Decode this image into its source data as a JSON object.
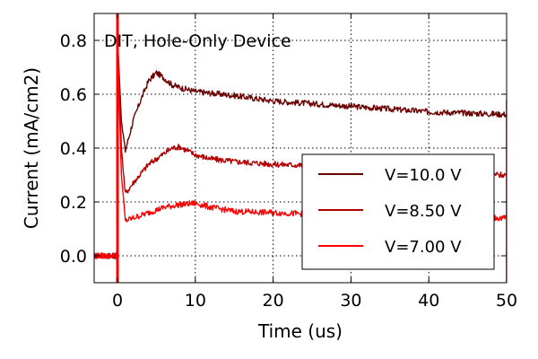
{
  "chart_data": {
    "type": "line",
    "title": "",
    "annotation": "DIT, Hole-Only Device",
    "xlabel": "Time (us)",
    "ylabel": "Current (mA/cm2)",
    "xlim": [
      -3,
      50
    ],
    "ylim": [
      -0.1,
      0.9
    ],
    "x_ticks": [
      0,
      10,
      20,
      30,
      40,
      50
    ],
    "y_ticks": [
      0.0,
      0.2,
      0.4,
      0.6,
      0.8
    ],
    "x_tick_labels": [
      "0",
      "10",
      "20",
      "30",
      "40",
      "50"
    ],
    "y_tick_labels": [
      "0.0",
      "0.2",
      "0.4",
      "0.6",
      "0.8"
    ],
    "grid": true,
    "grid_style": "dotted",
    "legend_position": "center-right",
    "series": [
      {
        "name": "V=10.0 V",
        "color": "#6b0000",
        "points": [
          [
            -3,
            0.0
          ],
          [
            0,
            0.0
          ],
          [
            0.1,
            0.75
          ],
          [
            0.5,
            0.5
          ],
          [
            1,
            0.39
          ],
          [
            2,
            0.5
          ],
          [
            3,
            0.58
          ],
          [
            4,
            0.65
          ],
          [
            5,
            0.68
          ],
          [
            6,
            0.66
          ],
          [
            7,
            0.635
          ],
          [
            8,
            0.625
          ],
          [
            10,
            0.61
          ],
          [
            15,
            0.595
          ],
          [
            20,
            0.575
          ],
          [
            25,
            0.565
          ],
          [
            30,
            0.555
          ],
          [
            35,
            0.545
          ],
          [
            40,
            0.535
          ],
          [
            45,
            0.53
          ],
          [
            50,
            0.525
          ]
        ]
      },
      {
        "name": "V=8.50 V",
        "color": "#b30000",
        "points": [
          [
            -3,
            0.0
          ],
          [
            0,
            0.0
          ],
          [
            0.1,
            0.72
          ],
          [
            0.5,
            0.4
          ],
          [
            1,
            0.23
          ],
          [
            2,
            0.27
          ],
          [
            4,
            0.34
          ],
          [
            6,
            0.38
          ],
          [
            7,
            0.4
          ],
          [
            8,
            0.405
          ],
          [
            9,
            0.39
          ],
          [
            10,
            0.375
          ],
          [
            12,
            0.36
          ],
          [
            15,
            0.35
          ],
          [
            20,
            0.34
          ],
          [
            25,
            0.335
          ],
          [
            30,
            0.33
          ],
          [
            35,
            0.32
          ],
          [
            40,
            0.315
          ],
          [
            45,
            0.305
          ],
          [
            50,
            0.3
          ]
        ]
      },
      {
        "name": "V=7.00 V",
        "color": "#ff0000",
        "points": [
          [
            -3,
            0.0
          ],
          [
            0,
            0.0
          ],
          [
            0.1,
            0.7
          ],
          [
            0.5,
            0.3
          ],
          [
            1,
            0.13
          ],
          [
            2,
            0.14
          ],
          [
            4,
            0.16
          ],
          [
            6,
            0.18
          ],
          [
            8,
            0.19
          ],
          [
            10,
            0.195
          ],
          [
            12,
            0.18
          ],
          [
            15,
            0.165
          ],
          [
            20,
            0.16
          ],
          [
            25,
            0.155
          ],
          [
            30,
            0.15
          ],
          [
            35,
            0.148
          ],
          [
            40,
            0.145
          ],
          [
            45,
            0.142
          ],
          [
            50,
            0.14
          ]
        ]
      }
    ]
  }
}
